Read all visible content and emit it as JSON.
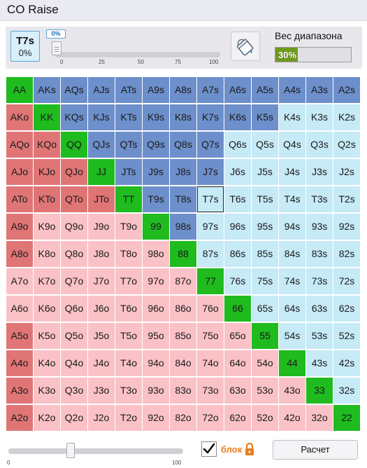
{
  "window": {
    "title": "CO Raise"
  },
  "hand_box": {
    "hand": "T7s",
    "percent": "0%"
  },
  "frequency_slider": {
    "value_label": "0%",
    "value": 0,
    "ticks": [
      "0",
      "25",
      "50",
      "75",
      "100"
    ]
  },
  "range_weight": {
    "label": "Вес диапазона",
    "value_text": "30%",
    "value": 30
  },
  "bottom": {
    "slider_ticks": [
      "0",
      "100"
    ],
    "slider_value": 35,
    "lock_label": "блок",
    "lock_checked": true,
    "calc_button": "Расчет"
  },
  "colors": {
    "raise": "#6d8fcb",
    "pair": "#1fbb1f",
    "offsuit_raise": "#e07576",
    "suited_fold": "#c6eaf6",
    "offsuit_fold": "#fac2c7",
    "lock": "#e87d1e"
  },
  "icons": {
    "paint_bucket": "paint-bucket-icon",
    "lock": "lock-icon",
    "check": "check-icon"
  },
  "selected_hand": "T7s",
  "grid": [
    [
      [
        "AA",
        "pair"
      ],
      [
        "AKs",
        "raise"
      ],
      [
        "AQs",
        "raise"
      ],
      [
        "AJs",
        "raise"
      ],
      [
        "ATs",
        "raise"
      ],
      [
        "A9s",
        "raise"
      ],
      [
        "A8s",
        "raise"
      ],
      [
        "A7s",
        "raise"
      ],
      [
        "A6s",
        "raise"
      ],
      [
        "A5s",
        "raise"
      ],
      [
        "A4s",
        "raise"
      ],
      [
        "A3s",
        "raise"
      ],
      [
        "A2s",
        "raise"
      ]
    ],
    [
      [
        "AKo",
        "offred"
      ],
      [
        "KK",
        "pair"
      ],
      [
        "KQs",
        "raise"
      ],
      [
        "KJs",
        "raise"
      ],
      [
        "KTs",
        "raise"
      ],
      [
        "K9s",
        "raise"
      ],
      [
        "K8s",
        "raise"
      ],
      [
        "K7s",
        "raise"
      ],
      [
        "K6s",
        "raise"
      ],
      [
        "K5s",
        "raise"
      ],
      [
        "K4s",
        "suited-light"
      ],
      [
        "K3s",
        "suited-light"
      ],
      [
        "K2s",
        "suited-light"
      ]
    ],
    [
      [
        "AQo",
        "offred"
      ],
      [
        "KQo",
        "offred"
      ],
      [
        "QQ",
        "pair"
      ],
      [
        "QJs",
        "raise"
      ],
      [
        "QTs",
        "raise"
      ],
      [
        "Q9s",
        "raise"
      ],
      [
        "Q8s",
        "raise"
      ],
      [
        "Q7s",
        "raise"
      ],
      [
        "Q6s",
        "suited-light"
      ],
      [
        "Q5s",
        "suited-light"
      ],
      [
        "Q4s",
        "suited-light"
      ],
      [
        "Q3s",
        "suited-light"
      ],
      [
        "Q2s",
        "suited-light"
      ]
    ],
    [
      [
        "AJo",
        "offred"
      ],
      [
        "KJo",
        "offred"
      ],
      [
        "QJo",
        "offred"
      ],
      [
        "JJ",
        "pair"
      ],
      [
        "JTs",
        "raise"
      ],
      [
        "J9s",
        "raise"
      ],
      [
        "J8s",
        "raise"
      ],
      [
        "J7s",
        "raise"
      ],
      [
        "J6s",
        "suited-light"
      ],
      [
        "J5s",
        "suited-light"
      ],
      [
        "J4s",
        "suited-light"
      ],
      [
        "J3s",
        "suited-light"
      ],
      [
        "J2s",
        "suited-light"
      ]
    ],
    [
      [
        "ATo",
        "offred"
      ],
      [
        "KTo",
        "offred"
      ],
      [
        "QTo",
        "offred"
      ],
      [
        "JTo",
        "offred"
      ],
      [
        "TT",
        "pair"
      ],
      [
        "T9s",
        "raise"
      ],
      [
        "T8s",
        "raise"
      ],
      [
        "T7s",
        "suited-light"
      ],
      [
        "T6s",
        "suited-light"
      ],
      [
        "T5s",
        "suited-light"
      ],
      [
        "T4s",
        "suited-light"
      ],
      [
        "T3s",
        "suited-light"
      ],
      [
        "T2s",
        "suited-light"
      ]
    ],
    [
      [
        "A9o",
        "offred"
      ],
      [
        "K9o",
        "off-light"
      ],
      [
        "Q9o",
        "off-light"
      ],
      [
        "J9o",
        "off-light"
      ],
      [
        "T9o",
        "off-light"
      ],
      [
        "99",
        "pair"
      ],
      [
        "98s",
        "raise"
      ],
      [
        "97s",
        "suited-light"
      ],
      [
        "96s",
        "suited-light"
      ],
      [
        "95s",
        "suited-light"
      ],
      [
        "94s",
        "suited-light"
      ],
      [
        "93s",
        "suited-light"
      ],
      [
        "92s",
        "suited-light"
      ]
    ],
    [
      [
        "A8o",
        "offred"
      ],
      [
        "K8o",
        "off-light"
      ],
      [
        "Q8o",
        "off-light"
      ],
      [
        "J8o",
        "off-light"
      ],
      [
        "T8o",
        "off-light"
      ],
      [
        "98o",
        "off-light"
      ],
      [
        "88",
        "pair"
      ],
      [
        "87s",
        "suited-light"
      ],
      [
        "86s",
        "suited-light"
      ],
      [
        "85s",
        "suited-light"
      ],
      [
        "84s",
        "suited-light"
      ],
      [
        "83s",
        "suited-light"
      ],
      [
        "82s",
        "suited-light"
      ]
    ],
    [
      [
        "A7o",
        "off-light"
      ],
      [
        "K7o",
        "off-light"
      ],
      [
        "Q7o",
        "off-light"
      ],
      [
        "J7o",
        "off-light"
      ],
      [
        "T7o",
        "off-light"
      ],
      [
        "97o",
        "off-light"
      ],
      [
        "87o",
        "off-light"
      ],
      [
        "77",
        "pair"
      ],
      [
        "76s",
        "suited-light"
      ],
      [
        "75s",
        "suited-light"
      ],
      [
        "74s",
        "suited-light"
      ],
      [
        "73s",
        "suited-light"
      ],
      [
        "72s",
        "suited-light"
      ]
    ],
    [
      [
        "A6o",
        "off-light"
      ],
      [
        "K6o",
        "off-light"
      ],
      [
        "Q6o",
        "off-light"
      ],
      [
        "J6o",
        "off-light"
      ],
      [
        "T6o",
        "off-light"
      ],
      [
        "96o",
        "off-light"
      ],
      [
        "86o",
        "off-light"
      ],
      [
        "76o",
        "off-light"
      ],
      [
        "66",
        "pair"
      ],
      [
        "65s",
        "suited-light"
      ],
      [
        "64s",
        "suited-light"
      ],
      [
        "63s",
        "suited-light"
      ],
      [
        "62s",
        "suited-light"
      ]
    ],
    [
      [
        "A5o",
        "offred"
      ],
      [
        "K5o",
        "off-light"
      ],
      [
        "Q5o",
        "off-light"
      ],
      [
        "J5o",
        "off-light"
      ],
      [
        "T5o",
        "off-light"
      ],
      [
        "95o",
        "off-light"
      ],
      [
        "85o",
        "off-light"
      ],
      [
        "75o",
        "off-light"
      ],
      [
        "65o",
        "off-light"
      ],
      [
        "55",
        "pair"
      ],
      [
        "54s",
        "suited-light"
      ],
      [
        "53s",
        "suited-light"
      ],
      [
        "52s",
        "suited-light"
      ]
    ],
    [
      [
        "A4o",
        "offred"
      ],
      [
        "K4o",
        "off-light"
      ],
      [
        "Q4o",
        "off-light"
      ],
      [
        "J4o",
        "off-light"
      ],
      [
        "T4o",
        "off-light"
      ],
      [
        "94o",
        "off-light"
      ],
      [
        "84o",
        "off-light"
      ],
      [
        "74o",
        "off-light"
      ],
      [
        "64o",
        "off-light"
      ],
      [
        "54o",
        "off-light"
      ],
      [
        "44",
        "pair"
      ],
      [
        "43s",
        "suited-light"
      ],
      [
        "42s",
        "suited-light"
      ]
    ],
    [
      [
        "A3o",
        "offred"
      ],
      [
        "K3o",
        "off-light"
      ],
      [
        "Q3o",
        "off-light"
      ],
      [
        "J3o",
        "off-light"
      ],
      [
        "T3o",
        "off-light"
      ],
      [
        "93o",
        "off-light"
      ],
      [
        "83o",
        "off-light"
      ],
      [
        "73o",
        "off-light"
      ],
      [
        "63o",
        "off-light"
      ],
      [
        "53o",
        "off-light"
      ],
      [
        "43o",
        "off-light"
      ],
      [
        "33",
        "pair"
      ],
      [
        "32s",
        "suited-light"
      ]
    ],
    [
      [
        "A2o",
        "offred"
      ],
      [
        "K2o",
        "off-light"
      ],
      [
        "Q2o",
        "off-light"
      ],
      [
        "J2o",
        "off-light"
      ],
      [
        "T2o",
        "off-light"
      ],
      [
        "92o",
        "off-light"
      ],
      [
        "82o",
        "off-light"
      ],
      [
        "72o",
        "off-light"
      ],
      [
        "62o",
        "off-light"
      ],
      [
        "52o",
        "off-light"
      ],
      [
        "42o",
        "off-light"
      ],
      [
        "32o",
        "off-light"
      ],
      [
        "22",
        "pair"
      ]
    ]
  ]
}
